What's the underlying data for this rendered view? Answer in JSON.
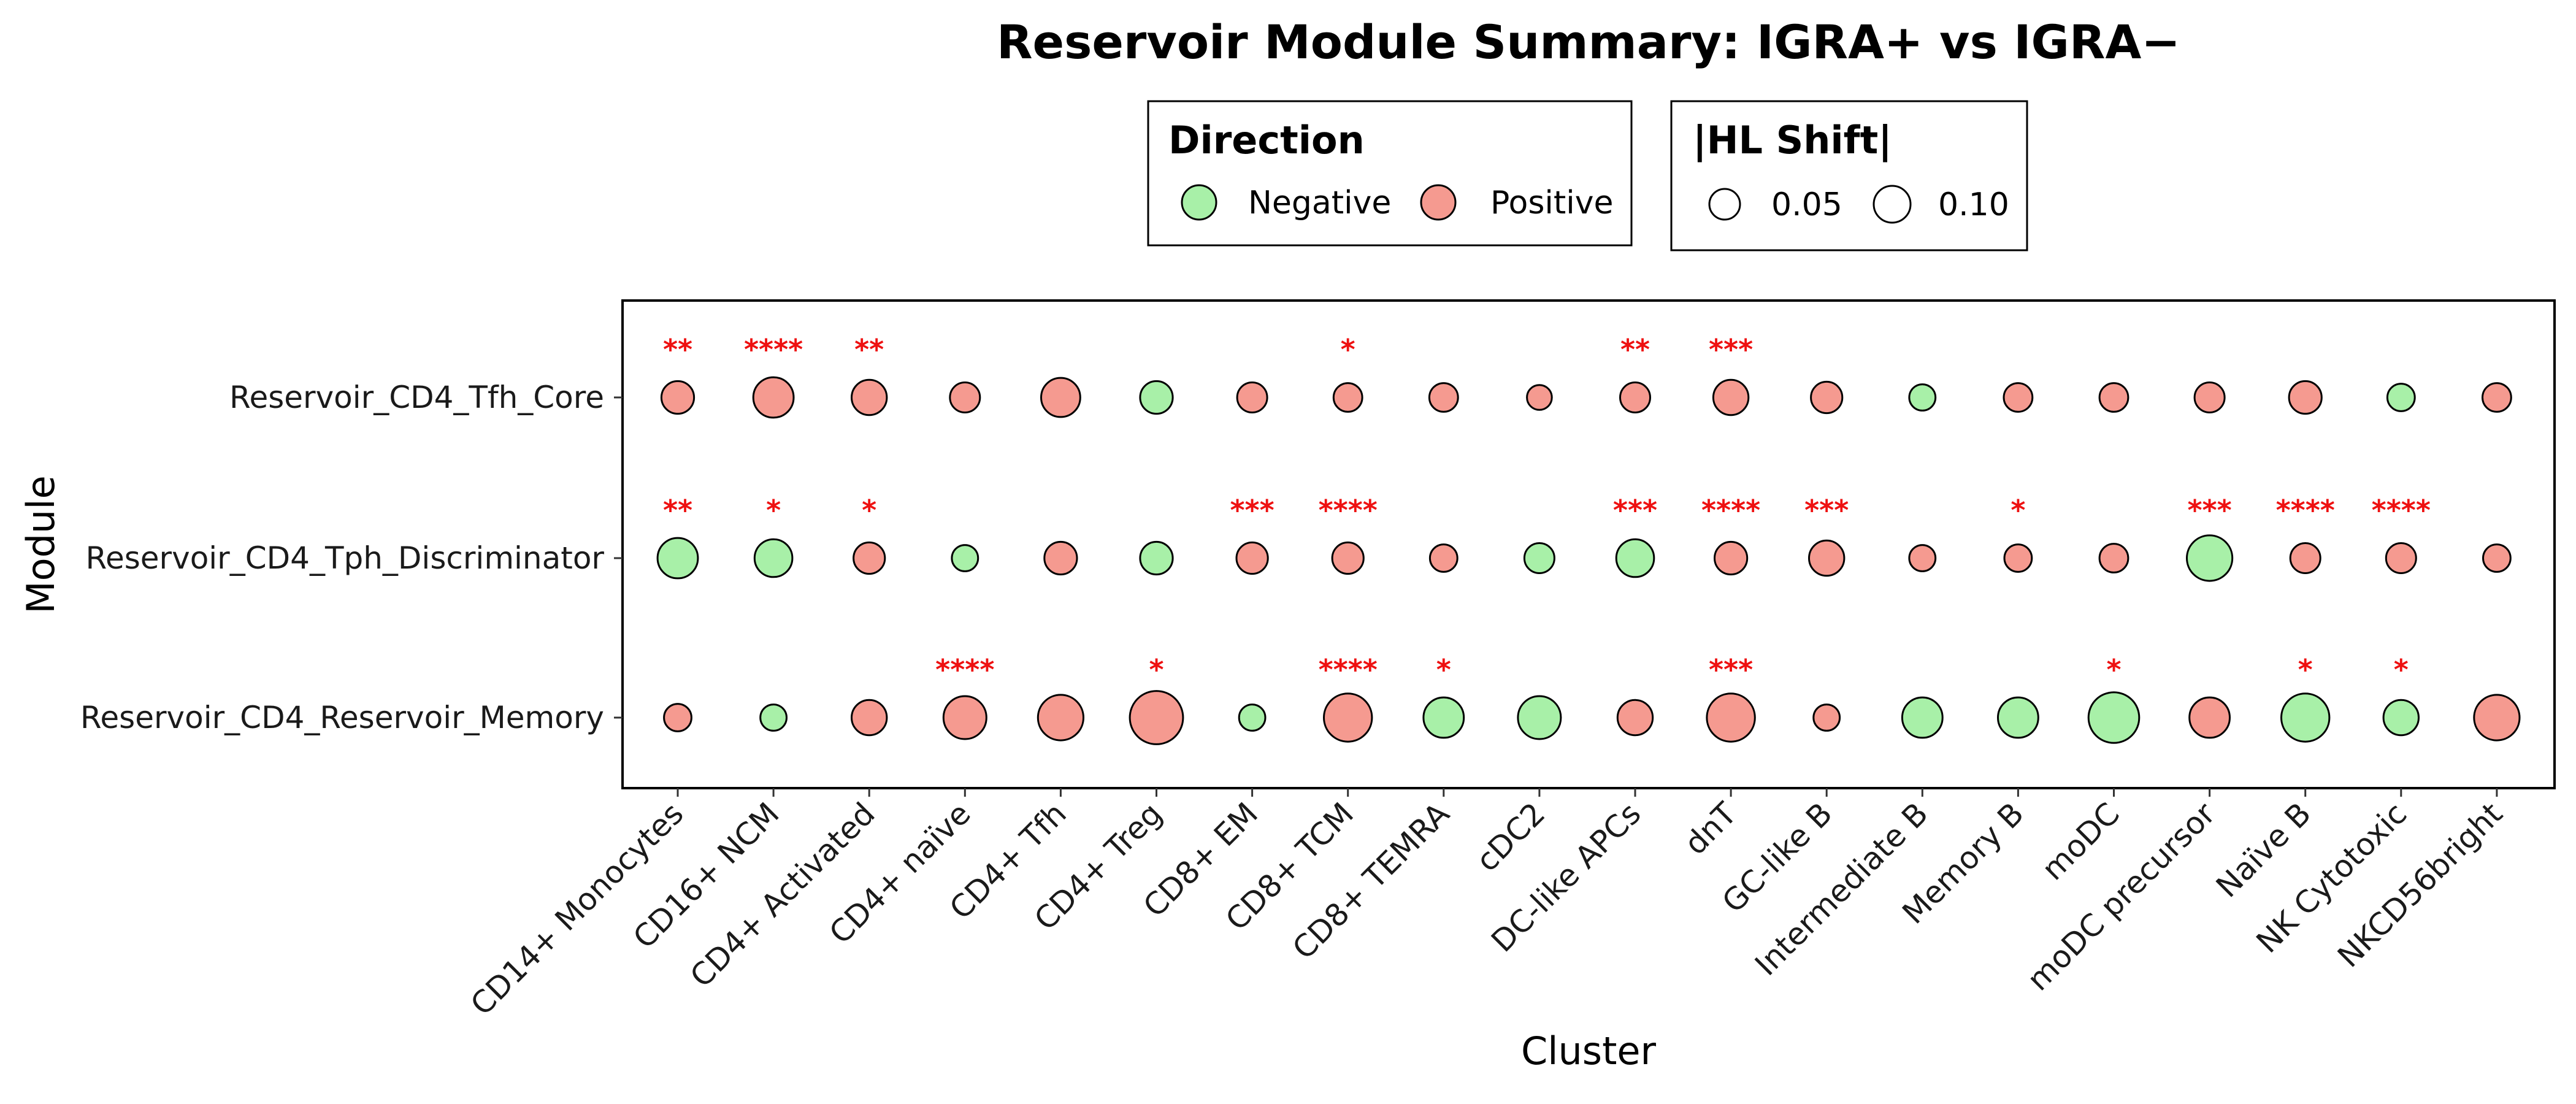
{
  "chart_data": {
    "type": "scatter",
    "title": "Reservoir Module Summary: IGRA+ vs IGRA−",
    "xlabel": "Cluster",
    "ylabel": "Module",
    "categories": [
      "CD14+ Monocytes",
      "CD16+ NCM",
      "CD4+ Activated",
      "CD4+ naïve",
      "CD4+ Tfh",
      "CD4+ Treg",
      "CD8+ EM",
      "CD8+ TCM",
      "CD8+ TEMRA",
      "cDC2",
      "DC-like APCs",
      "dnT",
      "GC-like B",
      "Intermediate B",
      "Memory B",
      "moDC",
      "moDC precursor",
      "Naïve B",
      "NK Cytotoxic",
      "NKCD56bright"
    ],
    "modules": [
      "Reservoir_CD4_Tfh_Core",
      "Reservoir_CD4_Tph_Discriminator",
      "Reservoir_CD4_Reservoir_Memory"
    ],
    "grid": false,
    "legend_position": "top",
    "colors": {
      "Negative": "#a8f0a8",
      "Positive": "#f59a90",
      "significance": "#ee1111"
    },
    "legends": {
      "direction": {
        "title": "Direction",
        "entries": [
          "Negative",
          "Positive"
        ]
      },
      "size": {
        "title": "|HL Shift|",
        "entries": [
          {
            "label": "0.05",
            "value": 0.05
          },
          {
            "label": "0.10",
            "value": 0.1
          }
        ]
      }
    },
    "series": [
      {
        "module": "Reservoir_CD4_Tfh_Core",
        "direction": [
          "Positive",
          "Positive",
          "Positive",
          "Positive",
          "Positive",
          "Negative",
          "Positive",
          "Positive",
          "Positive",
          "Positive",
          "Positive",
          "Positive",
          "Positive",
          "Negative",
          "Positive",
          "Positive",
          "Positive",
          "Positive",
          "Negative",
          "Positive"
        ],
        "abs_shift": [
          0.06,
          0.09,
          0.07,
          0.05,
          0.085,
          0.06,
          0.05,
          0.045,
          0.045,
          0.03,
          0.05,
          0.07,
          0.055,
          0.035,
          0.045,
          0.045,
          0.05,
          0.06,
          0.04,
          0.045
        ],
        "significance": [
          "**",
          "****",
          "**",
          "",
          "",
          "",
          "",
          "*",
          "",
          "",
          "**",
          "***",
          "",
          "",
          "",
          "",
          "",
          "",
          "",
          ""
        ]
      },
      {
        "module": "Reservoir_CD4_Tph_Discriminator",
        "direction": [
          "Negative",
          "Negative",
          "Positive",
          "Negative",
          "Positive",
          "Negative",
          "Positive",
          "Positive",
          "Positive",
          "Negative",
          "Negative",
          "Positive",
          "Positive",
          "Positive",
          "Positive",
          "Positive",
          "Negative",
          "Positive",
          "Positive",
          "Positive"
        ],
        "abs_shift": [
          0.09,
          0.08,
          0.055,
          0.035,
          0.06,
          0.06,
          0.055,
          0.055,
          0.04,
          0.05,
          0.08,
          0.06,
          0.07,
          0.035,
          0.04,
          0.045,
          0.11,
          0.05,
          0.05,
          0.04
        ],
        "significance": [
          "**",
          "*",
          "*",
          "",
          "",
          "",
          "***",
          "****",
          "",
          "",
          "***",
          "****",
          "***",
          "",
          "*",
          "",
          "***",
          "****",
          "****",
          ""
        ]
      },
      {
        "module": "Reservoir_CD4_Reservoir_Memory",
        "direction": [
          "Positive",
          "Negative",
          "Positive",
          "Positive",
          "Positive",
          "Positive",
          "Negative",
          "Positive",
          "Negative",
          "Negative",
          "Positive",
          "Positive",
          "Positive",
          "Negative",
          "Negative",
          "Negative",
          "Positive",
          "Negative",
          "Negative",
          "Positive"
        ],
        "abs_shift": [
          0.04,
          0.035,
          0.07,
          0.1,
          0.11,
          0.14,
          0.035,
          0.12,
          0.09,
          0.1,
          0.07,
          0.12,
          0.035,
          0.09,
          0.09,
          0.13,
          0.09,
          0.12,
          0.07,
          0.11
        ],
        "significance": [
          "",
          "",
          "",
          "****",
          "",
          "*",
          "",
          "****",
          "*",
          "",
          "",
          "***",
          "",
          "",
          "",
          "*",
          "",
          "*",
          "*",
          ""
        ]
      }
    ]
  }
}
